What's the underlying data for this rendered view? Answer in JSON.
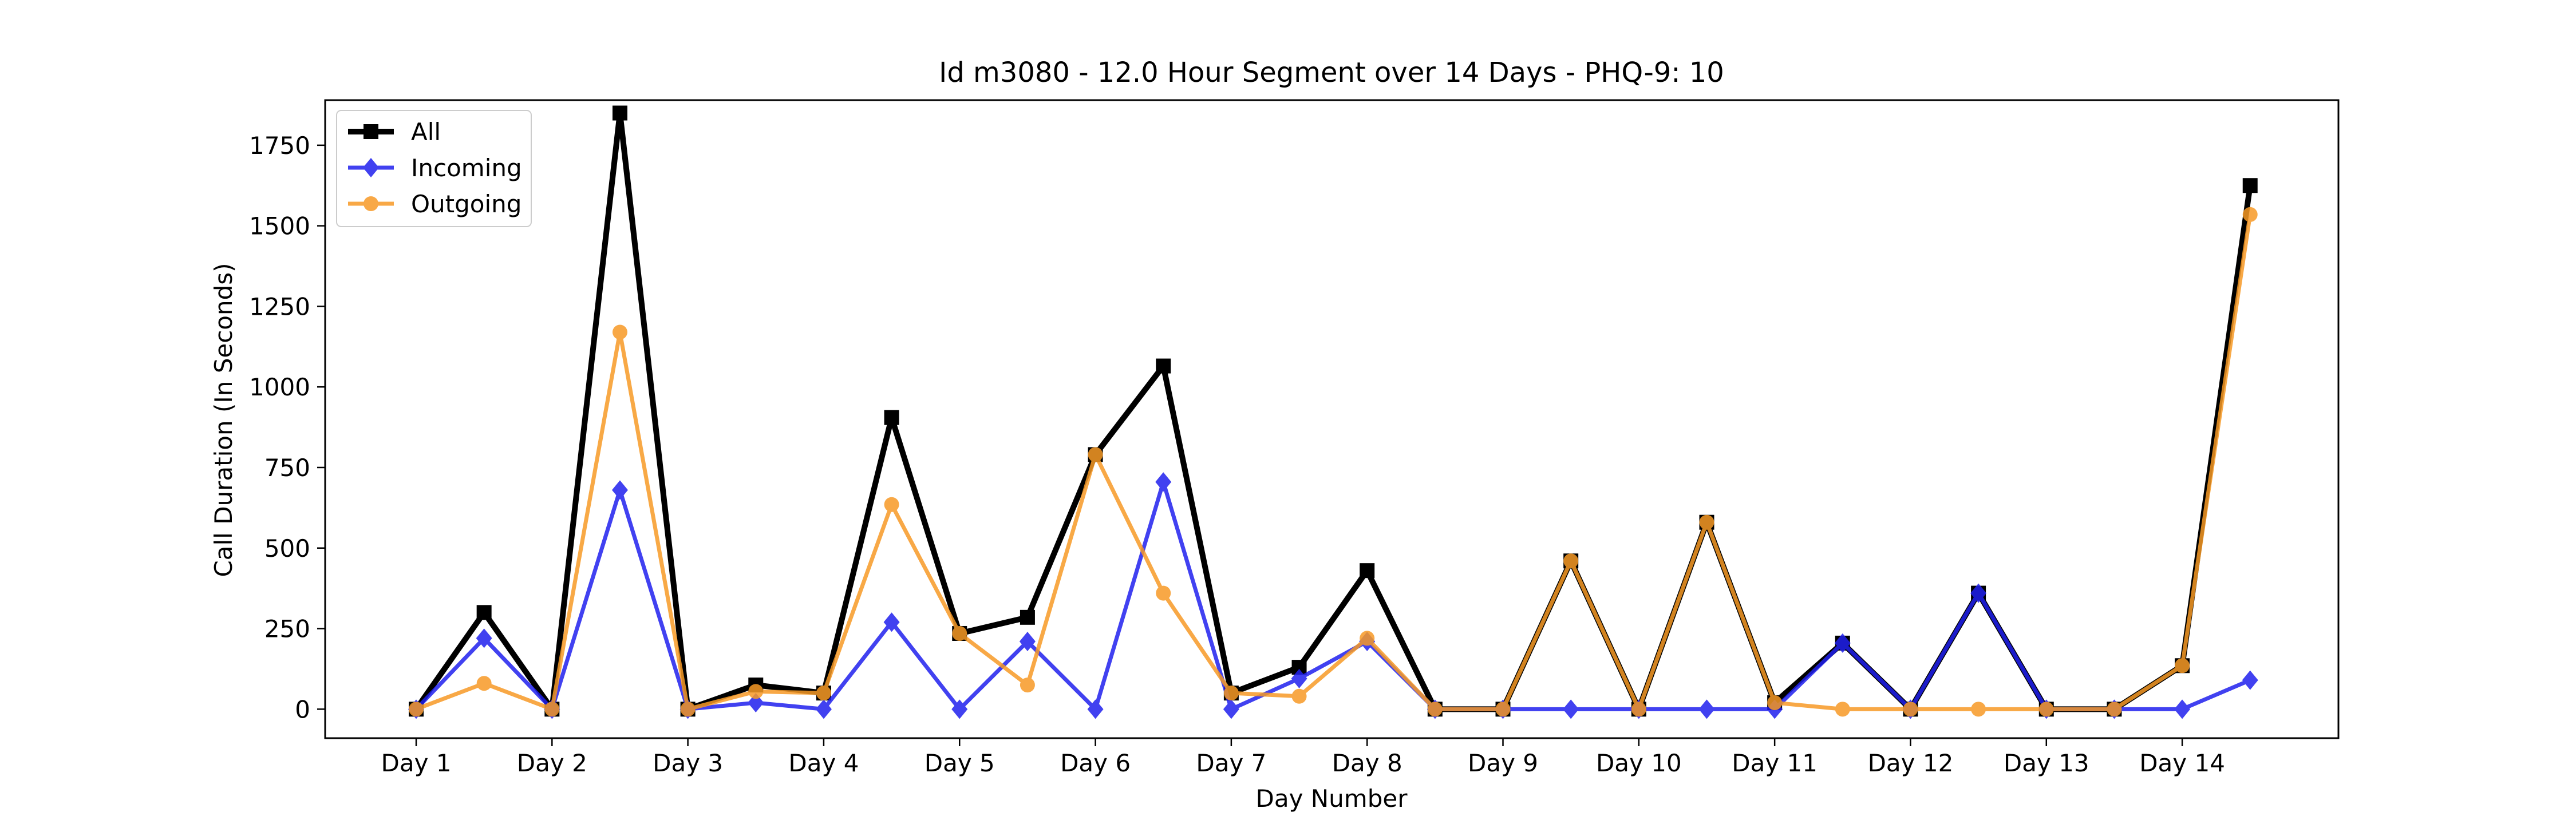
{
  "chart_data": {
    "type": "line",
    "title": "Id m3080 - 12.0 Hour Segment over 14 Days - PHQ-9: 10",
    "xlabel": "Day Number",
    "ylabel": "Call Duration (In Seconds)",
    "x_tick_labels": [
      "Day 1",
      "Day 2",
      "Day 3",
      "Day 4",
      "Day 5",
      "Day 6",
      "Day 7",
      "Day 8",
      "Day 9",
      "Day 10",
      "Day 11",
      "Day 12",
      "Day 13",
      "Day 14"
    ],
    "y_ticks": [
      0,
      250,
      500,
      750,
      1000,
      1250,
      1500,
      1750
    ],
    "xlim": [
      0.33,
      15.15
    ],
    "ylim": [
      -90,
      1890
    ],
    "grid": false,
    "legend_position": "top-left",
    "x": [
      1,
      1.5,
      2,
      2.5,
      3,
      3.5,
      4,
      4.5,
      5,
      5.5,
      6,
      6.5,
      7,
      7.5,
      8,
      8.5,
      9,
      9.5,
      10,
      10.5,
      11,
      11.5,
      12,
      12.5,
      13,
      13.5,
      14,
      14.5
    ],
    "series": [
      {
        "name": "All",
        "color": "#000000",
        "marker": "square",
        "values": [
          0,
          300,
          0,
          1850,
          0,
          75,
          50,
          905,
          235,
          285,
          790,
          1065,
          50,
          130,
          430,
          0,
          0,
          460,
          0,
          580,
          20,
          205,
          0,
          360,
          0,
          0,
          135,
          1625
        ]
      },
      {
        "name": "Incoming",
        "color": "#2020ee",
        "marker": "diamond",
        "values": [
          0,
          220,
          0,
          680,
          0,
          20,
          0,
          270,
          0,
          210,
          0,
          705,
          0,
          95,
          210,
          0,
          0,
          0,
          0,
          0,
          0,
          205,
          0,
          360,
          0,
          0,
          0,
          90
        ]
      },
      {
        "name": "Outgoing",
        "color": "#f79a26",
        "marker": "circle",
        "values": [
          0,
          80,
          0,
          1170,
          0,
          55,
          50,
          635,
          235,
          75,
          790,
          360,
          50,
          40,
          220,
          0,
          0,
          460,
          0,
          580,
          20,
          0,
          0,
          0,
          0,
          0,
          135,
          1535
        ]
      }
    ]
  }
}
